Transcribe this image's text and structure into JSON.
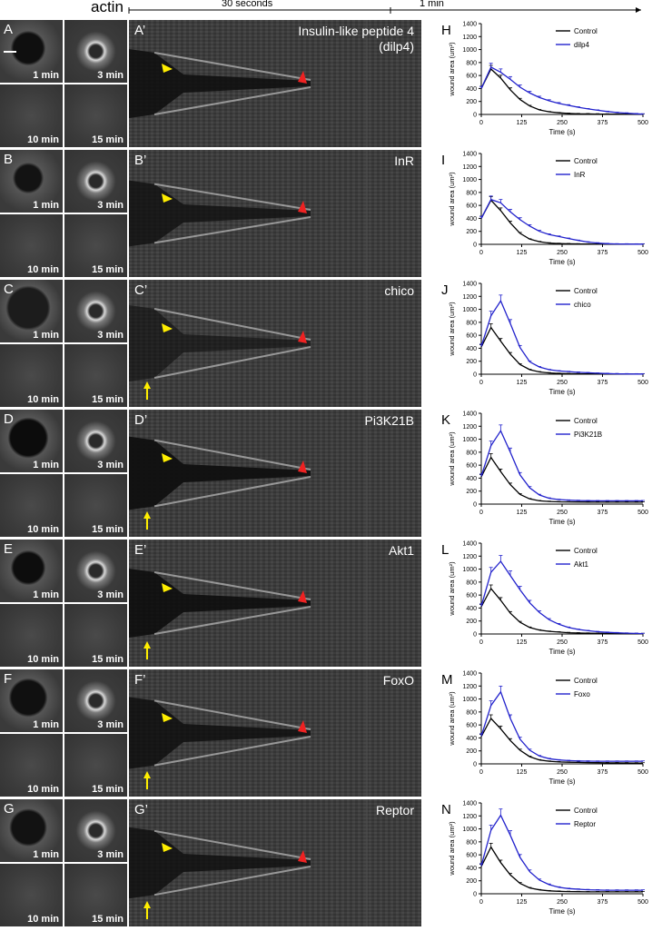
{
  "header": {
    "actin_label": "actin",
    "scale_30s": "30 seconds",
    "scale_1min": "1 min"
  },
  "rows": [
    {
      "tile_letter": "A",
      "kymo_label": "A’",
      "chart_letter": "H",
      "gene": "Insulin-like peptide 4\n(dilp4)",
      "wound_dark": 0.85,
      "wound_r": 0.3,
      "yellow_arrow": false
    },
    {
      "tile_letter": "B",
      "kymo_label": "B’",
      "chart_letter": "I",
      "gene": "InR",
      "wound_dark": 0.7,
      "wound_r": 0.26,
      "yellow_arrow": false
    },
    {
      "tile_letter": "C",
      "kymo_label": "C’",
      "chart_letter": "J",
      "gene": "chico",
      "wound_dark": 0.4,
      "wound_r": 0.4,
      "yellow_arrow": true
    },
    {
      "tile_letter": "D",
      "kymo_label": "D’",
      "chart_letter": "K",
      "gene": "Pi3K21B",
      "wound_dark": 0.95,
      "wound_r": 0.36,
      "yellow_arrow": true
    },
    {
      "tile_letter": "E",
      "kymo_label": "E’",
      "chart_letter": "L",
      "gene": "Akt1",
      "wound_dark": 0.9,
      "wound_r": 0.3,
      "yellow_arrow": true
    },
    {
      "tile_letter": "F",
      "kymo_label": "F’",
      "chart_letter": "M",
      "gene": "FoxO",
      "wound_dark": 0.8,
      "wound_r": 0.34,
      "yellow_arrow": true
    },
    {
      "tile_letter": "G",
      "kymo_label": "G’",
      "chart_letter": "N",
      "gene": "Reptor",
      "wound_dark": 0.75,
      "wound_r": 0.33,
      "yellow_arrow": true
    }
  ],
  "tile_times": [
    "1 min",
    "3 min",
    "10 min",
    "15 min"
  ],
  "colors": {
    "control": "#000000",
    "mutant": "#2222cc",
    "yellow_arrow": "#ffee00",
    "red_arrow": "#ee2222"
  },
  "chart_data": [
    {
      "type": "line",
      "xlabel": "Time (s)",
      "ylabel": "wound area (um²)",
      "xlim": [
        0,
        500
      ],
      "ylim": [
        0,
        1400
      ],
      "xticks": [
        0,
        125,
        250,
        375,
        500
      ],
      "yticks": [
        0,
        200,
        400,
        600,
        800,
        1000,
        1200,
        1400
      ],
      "x": [
        0,
        30,
        60,
        90,
        120,
        150,
        180,
        210,
        240,
        270,
        300,
        330,
        360,
        390,
        420,
        450,
        480,
        500
      ],
      "series": [
        {
          "name": "Control",
          "values": [
            400,
            700,
            560,
            380,
            230,
            130,
            70,
            40,
            25,
            15,
            10,
            8,
            6,
            5,
            4,
            3,
            3,
            3
          ]
        },
        {
          "name": "dilp4",
          "values": [
            400,
            730,
            650,
            540,
            420,
            330,
            260,
            210,
            170,
            140,
            110,
            85,
            65,
            45,
            30,
            20,
            10,
            5
          ]
        }
      ]
    },
    {
      "type": "line",
      "xlabel": "Time (s)",
      "ylabel": "wound area (um²)",
      "xlim": [
        0,
        500
      ],
      "ylim": [
        0,
        1400
      ],
      "xticks": [
        0,
        125,
        250,
        375,
        500
      ],
      "yticks": [
        0,
        200,
        400,
        600,
        800,
        1000,
        1200,
        1400
      ],
      "x": [
        0,
        30,
        60,
        90,
        120,
        150,
        180,
        210,
        240,
        270,
        300,
        330,
        360,
        390,
        420,
        450,
        480,
        500
      ],
      "series": [
        {
          "name": "Control",
          "values": [
            400,
            680,
            520,
            330,
            170,
            80,
            40,
            20,
            12,
            8,
            5,
            4,
            3,
            3,
            2,
            2,
            2,
            2
          ]
        },
        {
          "name": "InR",
          "values": [
            400,
            690,
            640,
            500,
            380,
            280,
            200,
            150,
            120,
            90,
            60,
            35,
            20,
            10,
            5,
            4,
            3,
            3
          ]
        }
      ]
    },
    {
      "type": "line",
      "xlabel": "Time (s)",
      "ylabel": "wound area (um²)",
      "xlim": [
        0,
        500
      ],
      "ylim": [
        0,
        1400
      ],
      "xticks": [
        0,
        125,
        250,
        375,
        500
      ],
      "yticks": [
        0,
        200,
        400,
        600,
        800,
        1000,
        1200,
        1400
      ],
      "x": [
        0,
        30,
        60,
        90,
        120,
        150,
        180,
        210,
        240,
        270,
        300,
        330,
        360,
        390,
        420,
        450,
        480,
        500
      ],
      "series": [
        {
          "name": "Control",
          "values": [
            420,
            720,
            510,
            310,
            150,
            70,
            35,
            20,
            12,
            8,
            6,
            5,
            4,
            3,
            3,
            2,
            2,
            2
          ]
        },
        {
          "name": "chico",
          "values": [
            430,
            900,
            1130,
            780,
            410,
            190,
            110,
            70,
            50,
            40,
            30,
            22,
            15,
            10,
            6,
            4,
            3,
            3
          ]
        }
      ]
    },
    {
      "type": "line",
      "xlabel": "Time (s)",
      "ylabel": "wound area (um²)",
      "xlim": [
        0,
        500
      ],
      "ylim": [
        0,
        1400
      ],
      "xticks": [
        0,
        125,
        250,
        375,
        500
      ],
      "yticks": [
        0,
        200,
        400,
        600,
        800,
        1000,
        1200,
        1400
      ],
      "x": [
        0,
        30,
        60,
        90,
        120,
        150,
        180,
        210,
        240,
        270,
        300,
        330,
        360,
        390,
        420,
        450,
        480,
        500
      ],
      "series": [
        {
          "name": "Control",
          "values": [
            420,
            720,
            500,
            300,
            150,
            80,
            50,
            40,
            35,
            33,
            32,
            31,
            30,
            30,
            30,
            30,
            30,
            30
          ]
        },
        {
          "name": "Pi3K21B",
          "values": [
            430,
            900,
            1130,
            800,
            450,
            250,
            140,
            90,
            70,
            60,
            55,
            52,
            50,
            50,
            50,
            50,
            50,
            50
          ]
        }
      ]
    },
    {
      "type": "line",
      "xlabel": "Time (s)",
      "ylabel": "wound area (um²)",
      "xlim": [
        0,
        500
      ],
      "ylim": [
        0,
        1400
      ],
      "xticks": [
        0,
        125,
        250,
        375,
        500
      ],
      "yticks": [
        0,
        200,
        400,
        600,
        800,
        1000,
        1200,
        1400
      ],
      "x": [
        0,
        30,
        60,
        90,
        120,
        150,
        180,
        210,
        240,
        270,
        300,
        330,
        360,
        390,
        420,
        450,
        480,
        500
      ],
      "series": [
        {
          "name": "Control",
          "values": [
            420,
            700,
            520,
            320,
            180,
            100,
            60,
            40,
            30,
            20,
            15,
            12,
            10,
            8,
            7,
            6,
            5,
            5
          ]
        },
        {
          "name": "Akt1",
          "values": [
            430,
            950,
            1120,
            900,
            680,
            480,
            330,
            220,
            150,
            100,
            70,
            50,
            35,
            25,
            18,
            12,
            8,
            5
          ]
        }
      ]
    },
    {
      "type": "line",
      "xlabel": "Time (s)",
      "ylabel": "wound area (um²)",
      "xlim": [
        0,
        500
      ],
      "ylim": [
        0,
        1400
      ],
      "xticks": [
        0,
        125,
        250,
        375,
        500
      ],
      "yticks": [
        0,
        200,
        400,
        600,
        800,
        1000,
        1200,
        1400
      ],
      "x": [
        0,
        30,
        60,
        90,
        120,
        150,
        180,
        210,
        240,
        270,
        300,
        330,
        360,
        390,
        420,
        450,
        480,
        500
      ],
      "series": [
        {
          "name": "Control",
          "values": [
            420,
            700,
            540,
            360,
            210,
            110,
            60,
            40,
            30,
            25,
            22,
            20,
            18,
            16,
            15,
            14,
            13,
            12
          ]
        },
        {
          "name": "Foxo",
          "values": [
            430,
            900,
            1110,
            700,
            380,
            210,
            120,
            80,
            60,
            50,
            45,
            42,
            40,
            40,
            40,
            40,
            40,
            40
          ]
        }
      ]
    },
    {
      "type": "line",
      "xlabel": "Time (s)",
      "ylabel": "wound area (um²)",
      "xlim": [
        0,
        500
      ],
      "ylim": [
        0,
        1400
      ],
      "xticks": [
        0,
        125,
        250,
        375,
        500
      ],
      "yticks": [
        0,
        200,
        400,
        600,
        800,
        1000,
        1200,
        1400
      ],
      "x": [
        0,
        30,
        60,
        90,
        120,
        150,
        180,
        210,
        240,
        270,
        300,
        330,
        360,
        390,
        420,
        450,
        480,
        500
      ],
      "series": [
        {
          "name": "Control",
          "values": [
            420,
            720,
            480,
            290,
            160,
            90,
            60,
            45,
            38,
            34,
            32,
            30,
            30,
            30,
            30,
            30,
            30,
            30
          ]
        },
        {
          "name": "Reptor",
          "values": [
            430,
            980,
            1210,
            900,
            560,
            340,
            210,
            140,
            100,
            80,
            70,
            62,
            58,
            55,
            55,
            55,
            55,
            55
          ]
        }
      ]
    }
  ]
}
